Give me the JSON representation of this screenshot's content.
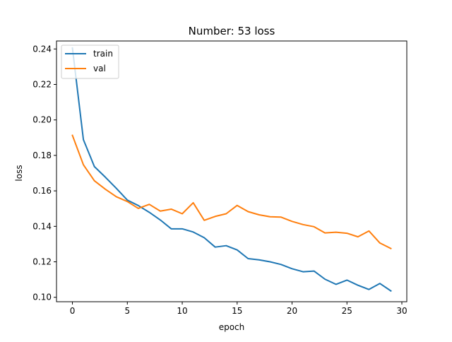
{
  "chart_data": {
    "type": "line",
    "title": "Number: 53 loss",
    "xlabel": "epoch",
    "ylabel": "loss",
    "xlim": [
      -1.45,
      30.45
    ],
    "ylim": [
      0.0975,
      0.2445
    ],
    "xticks": [
      0,
      5,
      10,
      15,
      20,
      25,
      30
    ],
    "yticks": [
      0.1,
      0.12,
      0.14,
      0.16,
      0.18,
      0.2,
      0.22,
      0.24
    ],
    "ytick_labels": [
      "0.10",
      "0.12",
      "0.14",
      "0.16",
      "0.18",
      "0.20",
      "0.22",
      "0.24"
    ],
    "grid": false,
    "legend_position": "top-left",
    "x": [
      0,
      1,
      2,
      3,
      4,
      5,
      6,
      7,
      8,
      9,
      10,
      11,
      12,
      13,
      14,
      15,
      16,
      17,
      18,
      19,
      20,
      21,
      22,
      23,
      24,
      25,
      26,
      27,
      28,
      29
    ],
    "series": [
      {
        "name": "train",
        "color": "#1f77b4",
        "values": [
          0.2405,
          0.1889,
          0.1737,
          0.1677,
          0.1614,
          0.1548,
          0.1517,
          0.1479,
          0.1436,
          0.1386,
          0.1386,
          0.1368,
          0.1336,
          0.1283,
          0.1291,
          0.1267,
          0.1218,
          0.1211,
          0.12,
          0.1185,
          0.1161,
          0.1144,
          0.1148,
          0.1102,
          0.1073,
          0.1097,
          0.1068,
          0.1044,
          0.1078,
          0.1036
        ]
      },
      {
        "name": "val",
        "color": "#ff7f0e",
        "values": [
          0.1913,
          0.1747,
          0.1657,
          0.1609,
          0.1567,
          0.154,
          0.1501,
          0.1524,
          0.1486,
          0.1497,
          0.1471,
          0.1533,
          0.1434,
          0.1456,
          0.1471,
          0.1518,
          0.1483,
          0.1465,
          0.1454,
          0.1452,
          0.1428,
          0.141,
          0.1398,
          0.1363,
          0.1367,
          0.1361,
          0.1341,
          0.1374,
          0.1306,
          0.1275
        ]
      }
    ]
  }
}
